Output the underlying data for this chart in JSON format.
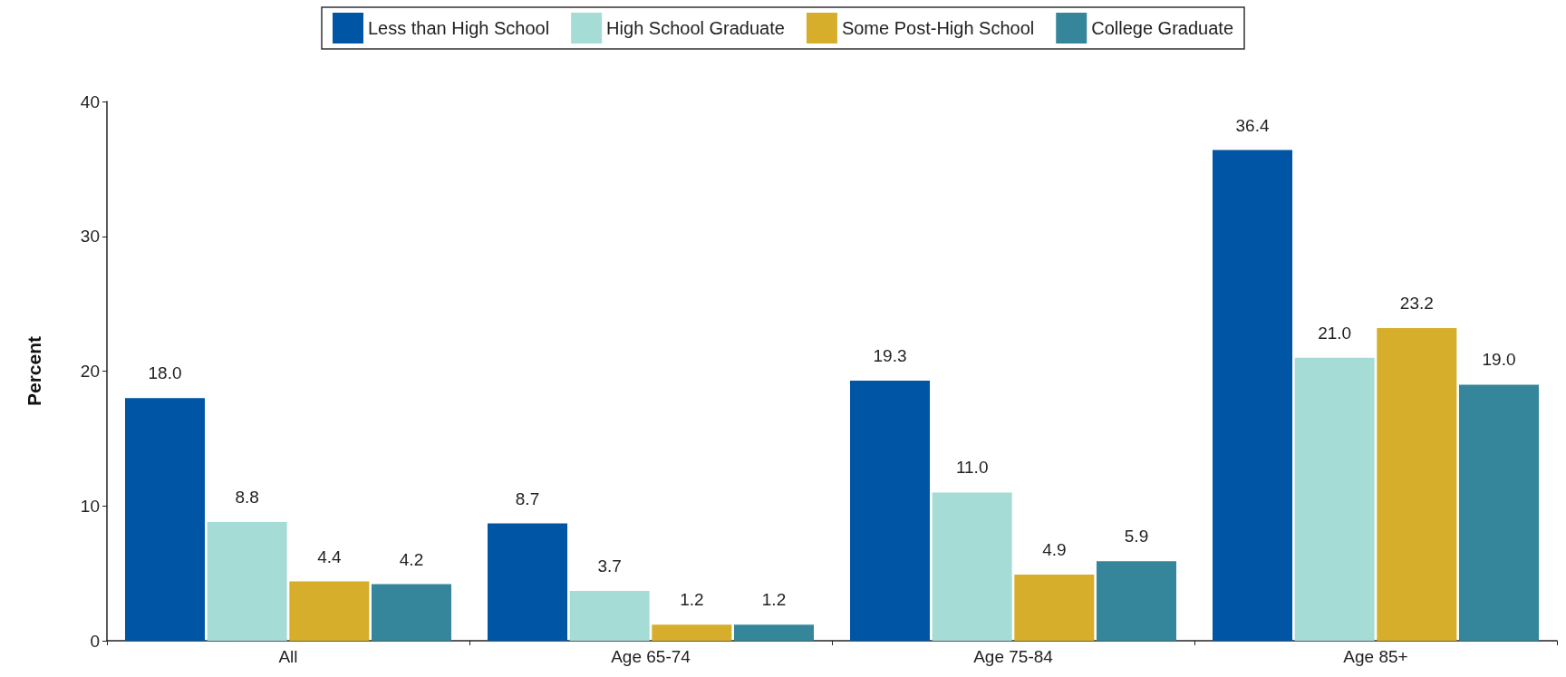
{
  "chart_data": {
    "type": "bar",
    "ylabel": "Percent",
    "categories": [
      "All",
      "Age 65-74",
      "Age 75-84",
      "Age 85+"
    ],
    "series": [
      {
        "name": "Less than High School",
        "color": "#0055a5",
        "values": [
          18.0,
          8.7,
          19.3,
          36.4
        ],
        "value_labels": [
          "18.0",
          "8.7",
          "19.3",
          "36.4"
        ]
      },
      {
        "name": "High School Graduate",
        "color": "#a6dcd6",
        "values": [
          8.8,
          3.7,
          11.0,
          21.0
        ],
        "value_labels": [
          "8.8",
          "3.7",
          "11.0",
          "21.0"
        ]
      },
      {
        "name": "Some Post-High School",
        "color": "#d6ae2b",
        "values": [
          4.4,
          1.2,
          4.9,
          23.2
        ],
        "value_labels": [
          "4.4",
          "1.2",
          "4.9",
          "23.2"
        ]
      },
      {
        "name": "College Graduate",
        "color": "#35869b",
        "values": [
          4.2,
          1.2,
          5.9,
          19.0
        ],
        "value_labels": [
          "4.2",
          "1.2",
          "5.9",
          "19.0"
        ]
      }
    ],
    "ylim": [
      0,
      40
    ],
    "yticks": [
      0,
      10,
      20,
      30,
      40
    ],
    "grid": false,
    "legend": "top"
  }
}
